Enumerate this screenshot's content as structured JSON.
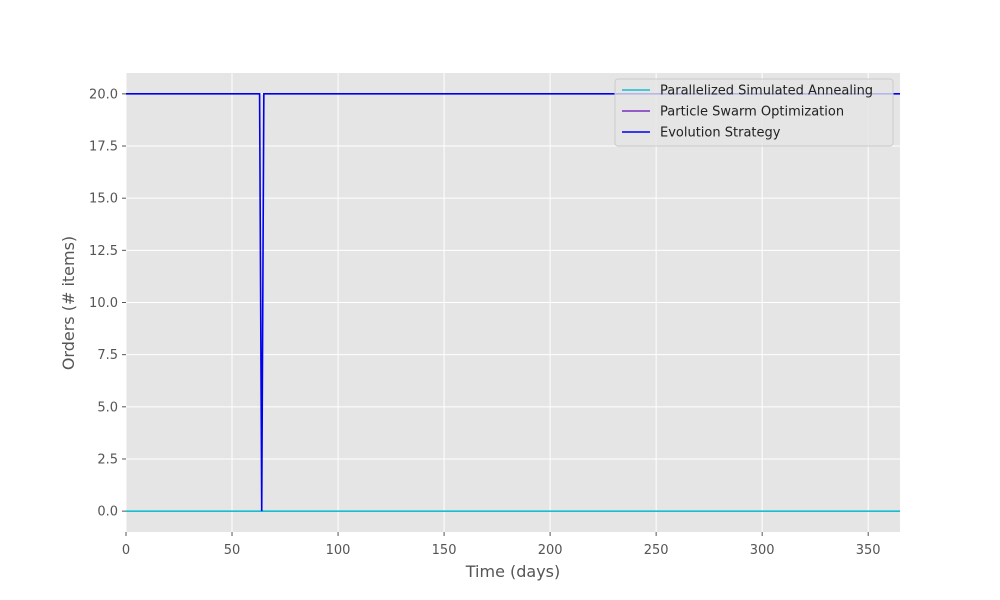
{
  "chart_data": {
    "type": "line",
    "title": "",
    "xlabel": "Time (days)",
    "ylabel": "Orders (# items)",
    "xlim": [
      0,
      365
    ],
    "ylim": [
      -1,
      21
    ],
    "x_ticks": [
      0,
      50,
      100,
      150,
      200,
      250,
      300,
      350
    ],
    "x_tick_labels": [
      "0",
      "50",
      "100",
      "150",
      "200",
      "250",
      "300",
      "350"
    ],
    "y_ticks": [
      0,
      2.5,
      5,
      7.5,
      10,
      12.5,
      15,
      17.5,
      20
    ],
    "y_tick_labels": [
      "0.0",
      "2.5",
      "5.0",
      "7.5",
      "10.0",
      "12.5",
      "15.0",
      "17.5",
      "20.0"
    ],
    "grid": true,
    "legend_position": "top-right",
    "series": [
      {
        "name": "Parallelized Simulated Annealing",
        "color": "#17becf",
        "points": [
          [
            0,
            0
          ],
          [
            365,
            0
          ]
        ]
      },
      {
        "name": "Particle Swarm Optimization",
        "color": "#7b2fbe",
        "points": []
      },
      {
        "name": "Evolution Strategy",
        "color": "#0000ee",
        "points": [
          [
            0,
            20
          ],
          [
            63,
            20
          ],
          [
            64,
            0
          ],
          [
            65,
            20
          ],
          [
            365,
            20
          ]
        ]
      }
    ]
  }
}
